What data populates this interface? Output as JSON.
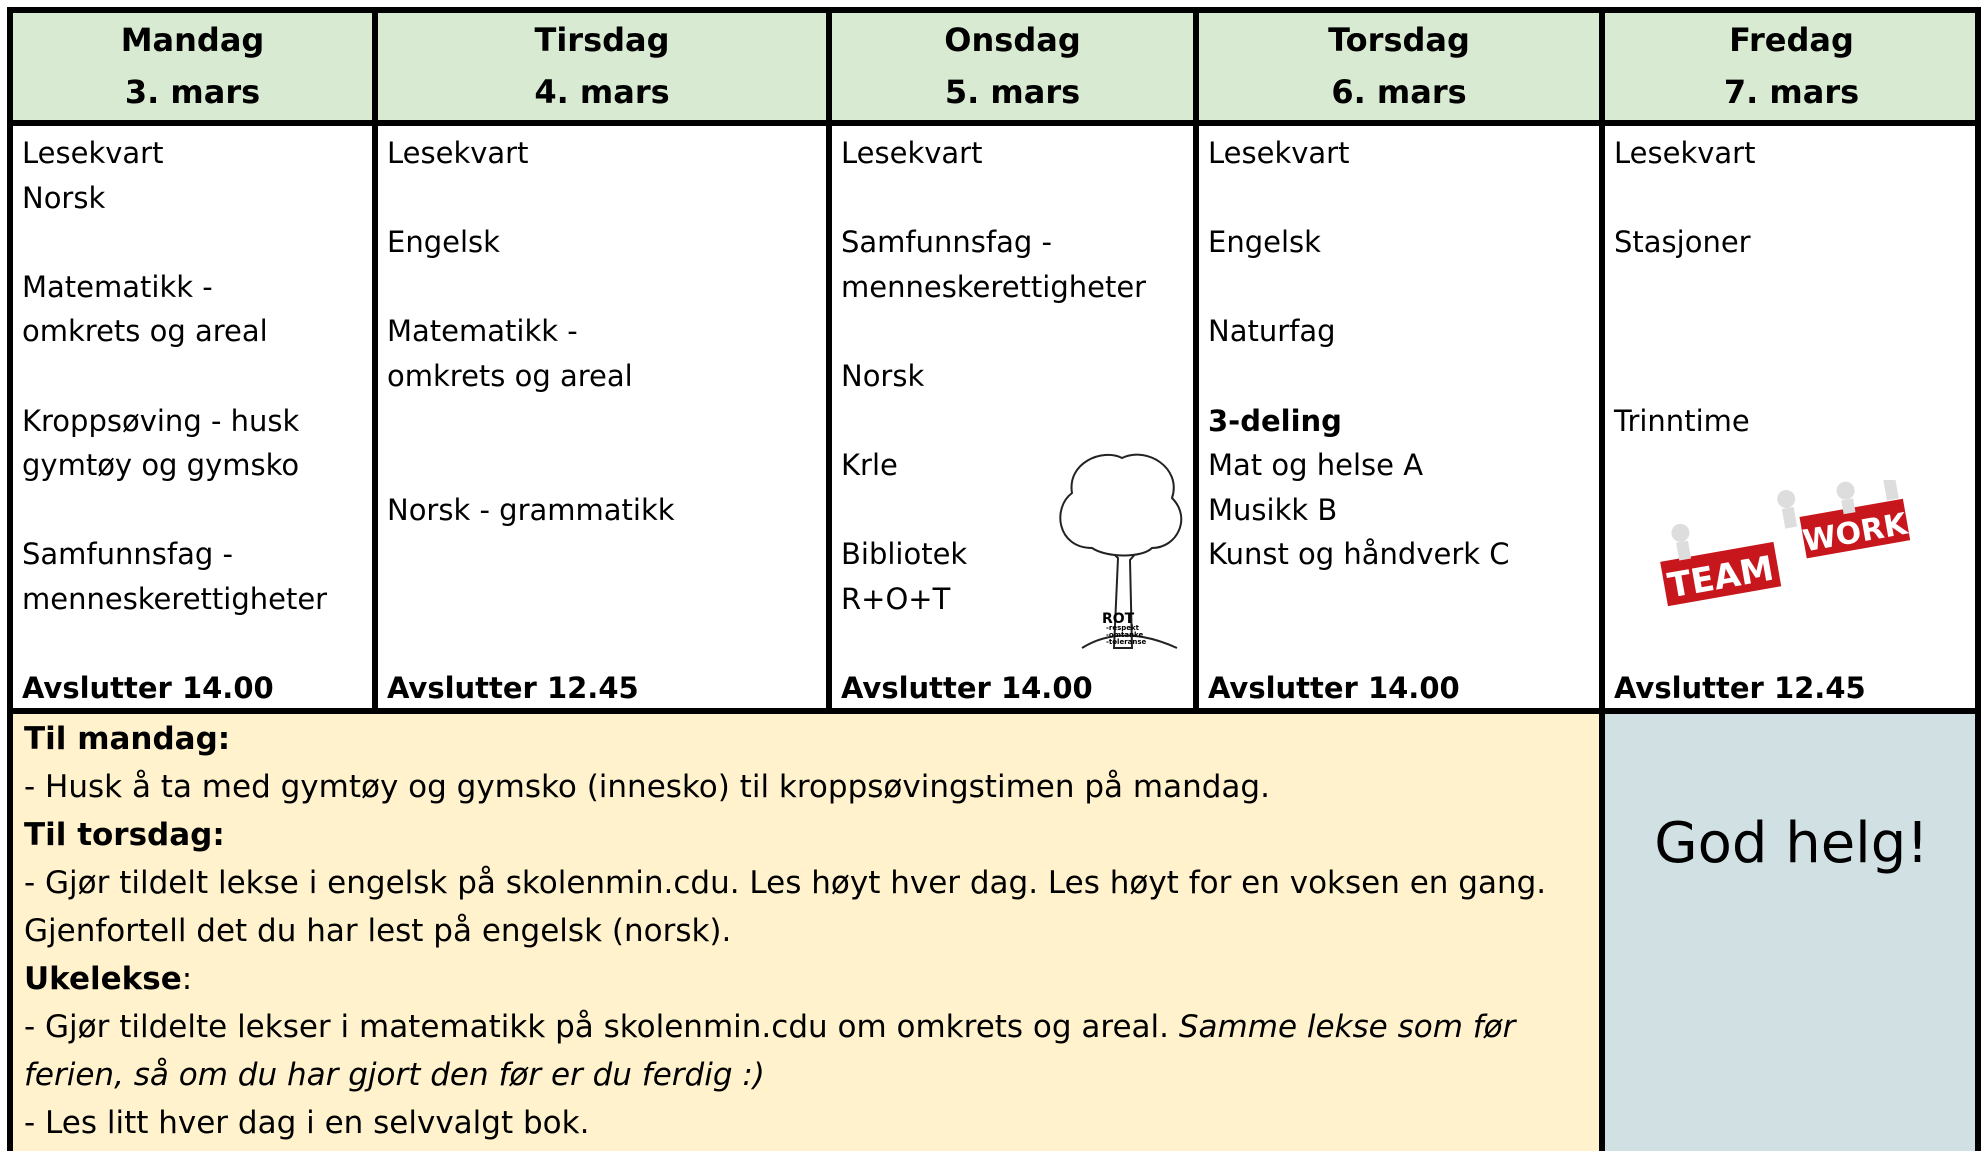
{
  "days": [
    {
      "name": "Mandag",
      "date": "3. mars",
      "items": [
        "Lesekvart",
        "Norsk",
        "Matematikk  -",
        "omkrets og areal",
        "Kroppsøving - husk",
        "gymtøy og gymsko",
        "Samfunnsfag -",
        "menneskerettigheter"
      ],
      "end": "Avslutter 14.00"
    },
    {
      "name": "Tirsdag",
      "date": "4. mars",
      "items": [
        "Lesekvart",
        "Engelsk",
        "Matematikk -",
        "omkrets og areal",
        "Norsk - grammatikk"
      ],
      "end": "Avslutter 12.45"
    },
    {
      "name": "Onsdag",
      "date": "5. mars",
      "items": [
        "Lesekvart",
        "Samfunnsfag -",
        "menneskerettigheter",
        "Norsk",
        "Krle",
        "Bibliotek",
        "R+O+T"
      ],
      "end": "Avslutter 14.00",
      "image_text": [
        "ROT",
        "-respekt",
        "-omtanke",
        "-toleranse"
      ]
    },
    {
      "name": "Torsdag",
      "date": "6. mars",
      "items": [
        "Lesekvart",
        "Engelsk",
        "Naturfag",
        "3-deling",
        "Mat og helse A",
        "Musikk B",
        "Kunst og håndverk C"
      ],
      "end": "Avslutter 14.00"
    },
    {
      "name": "Fredag",
      "date": "7. mars",
      "items": [
        "Lesekvart",
        "Stasjoner",
        "Trinntime"
      ],
      "end": "Avslutter 12.45",
      "image_text": [
        "TEAM",
        "WORK"
      ]
    }
  ],
  "notes": [
    [
      {
        "text": "Til mandag:",
        "style": "bold"
      }
    ],
    [
      {
        "text": "- Husk å ta med gymtøy og gymsko (innesko) til kroppsøvingstimen på mandag."
      }
    ],
    [
      {
        "text": "Til torsdag:",
        "style": "bold"
      }
    ],
    [
      {
        "text": "- Gjør tildelt lekse i engelsk på skolenmin.cdu. Les høyt hver dag. Les høyt for en voksen en gang."
      }
    ],
    [
      {
        "text": "Gjenfortell det du har lest på engelsk (norsk)."
      }
    ],
    [
      {
        "text": "Ukelekse",
        "style": "bold"
      },
      {
        "text": ":"
      }
    ],
    [
      {
        "text": "- Gjør tildelte lekser i matematikk på skolenmin.cdu om omkrets og areal. "
      },
      {
        "text": "Samme lekse som før",
        "style": "italic"
      }
    ],
    [
      {
        "text": "ferien, så om du har gjort den før er du ferdig :)",
        "style": "italic"
      }
    ],
    [
      {
        "text": "- Les litt hver dag i en selvvalgt bok."
      }
    ]
  ],
  "greeting": "God helg!"
}
